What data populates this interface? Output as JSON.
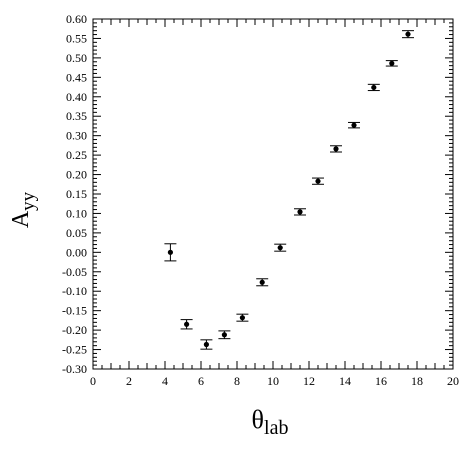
{
  "chart_data": {
    "type": "scatter",
    "title": "",
    "xlabel": "θ",
    "xlabel_sub": "lab",
    "ylabel": "A",
    "ylabel_sub": "yy",
    "xlim": [
      0,
      20
    ],
    "ylim": [
      -0.3,
      0.6
    ],
    "x_ticks": [
      0,
      2,
      4,
      6,
      8,
      10,
      12,
      14,
      16,
      18,
      20
    ],
    "x_tick_labels": [
      "0",
      "2",
      "4",
      "6",
      "8",
      "10",
      "12",
      "14",
      "16",
      "18",
      "20"
    ],
    "y_ticks": [
      0.6,
      0.55,
      0.5,
      0.45,
      0.4,
      0.35,
      0.3,
      0.25,
      0.2,
      0.15,
      0.1,
      0.05,
      0.0,
      -0.05,
      -0.1,
      -0.15,
      -0.2,
      -0.25,
      -0.3
    ],
    "y_tick_labels": [
      "0.60",
      "0.55",
      "0.50",
      "0.45",
      "0.40",
      "0.35",
      "0.30",
      "0.25",
      "0.20",
      "0.15",
      "0.10",
      "0.05",
      "0.00",
      "-0.05",
      "-0.10",
      "-0.15",
      "-0.20",
      "-0.25",
      "-0.30"
    ],
    "grid": false,
    "marker_color": "#000000",
    "points": [
      {
        "x": 4.3,
        "y": 0.0,
        "err": 0.022
      },
      {
        "x": 5.2,
        "y": -0.185,
        "err": 0.012
      },
      {
        "x": 6.3,
        "y": -0.237,
        "err": 0.012
      },
      {
        "x": 7.3,
        "y": -0.212,
        "err": 0.01
      },
      {
        "x": 8.3,
        "y": -0.168,
        "err": 0.009
      },
      {
        "x": 9.4,
        "y": -0.077,
        "err": 0.009
      },
      {
        "x": 10.4,
        "y": 0.012,
        "err": 0.009
      },
      {
        "x": 11.5,
        "y": 0.104,
        "err": 0.008
      },
      {
        "x": 12.5,
        "y": 0.183,
        "err": 0.008
      },
      {
        "x": 13.5,
        "y": 0.266,
        "err": 0.008
      },
      {
        "x": 14.5,
        "y": 0.327,
        "err": 0.007
      },
      {
        "x": 15.6,
        "y": 0.424,
        "err": 0.008
      },
      {
        "x": 16.6,
        "y": 0.486,
        "err": 0.007
      },
      {
        "x": 17.5,
        "y": 0.561,
        "err": 0.009
      }
    ]
  }
}
